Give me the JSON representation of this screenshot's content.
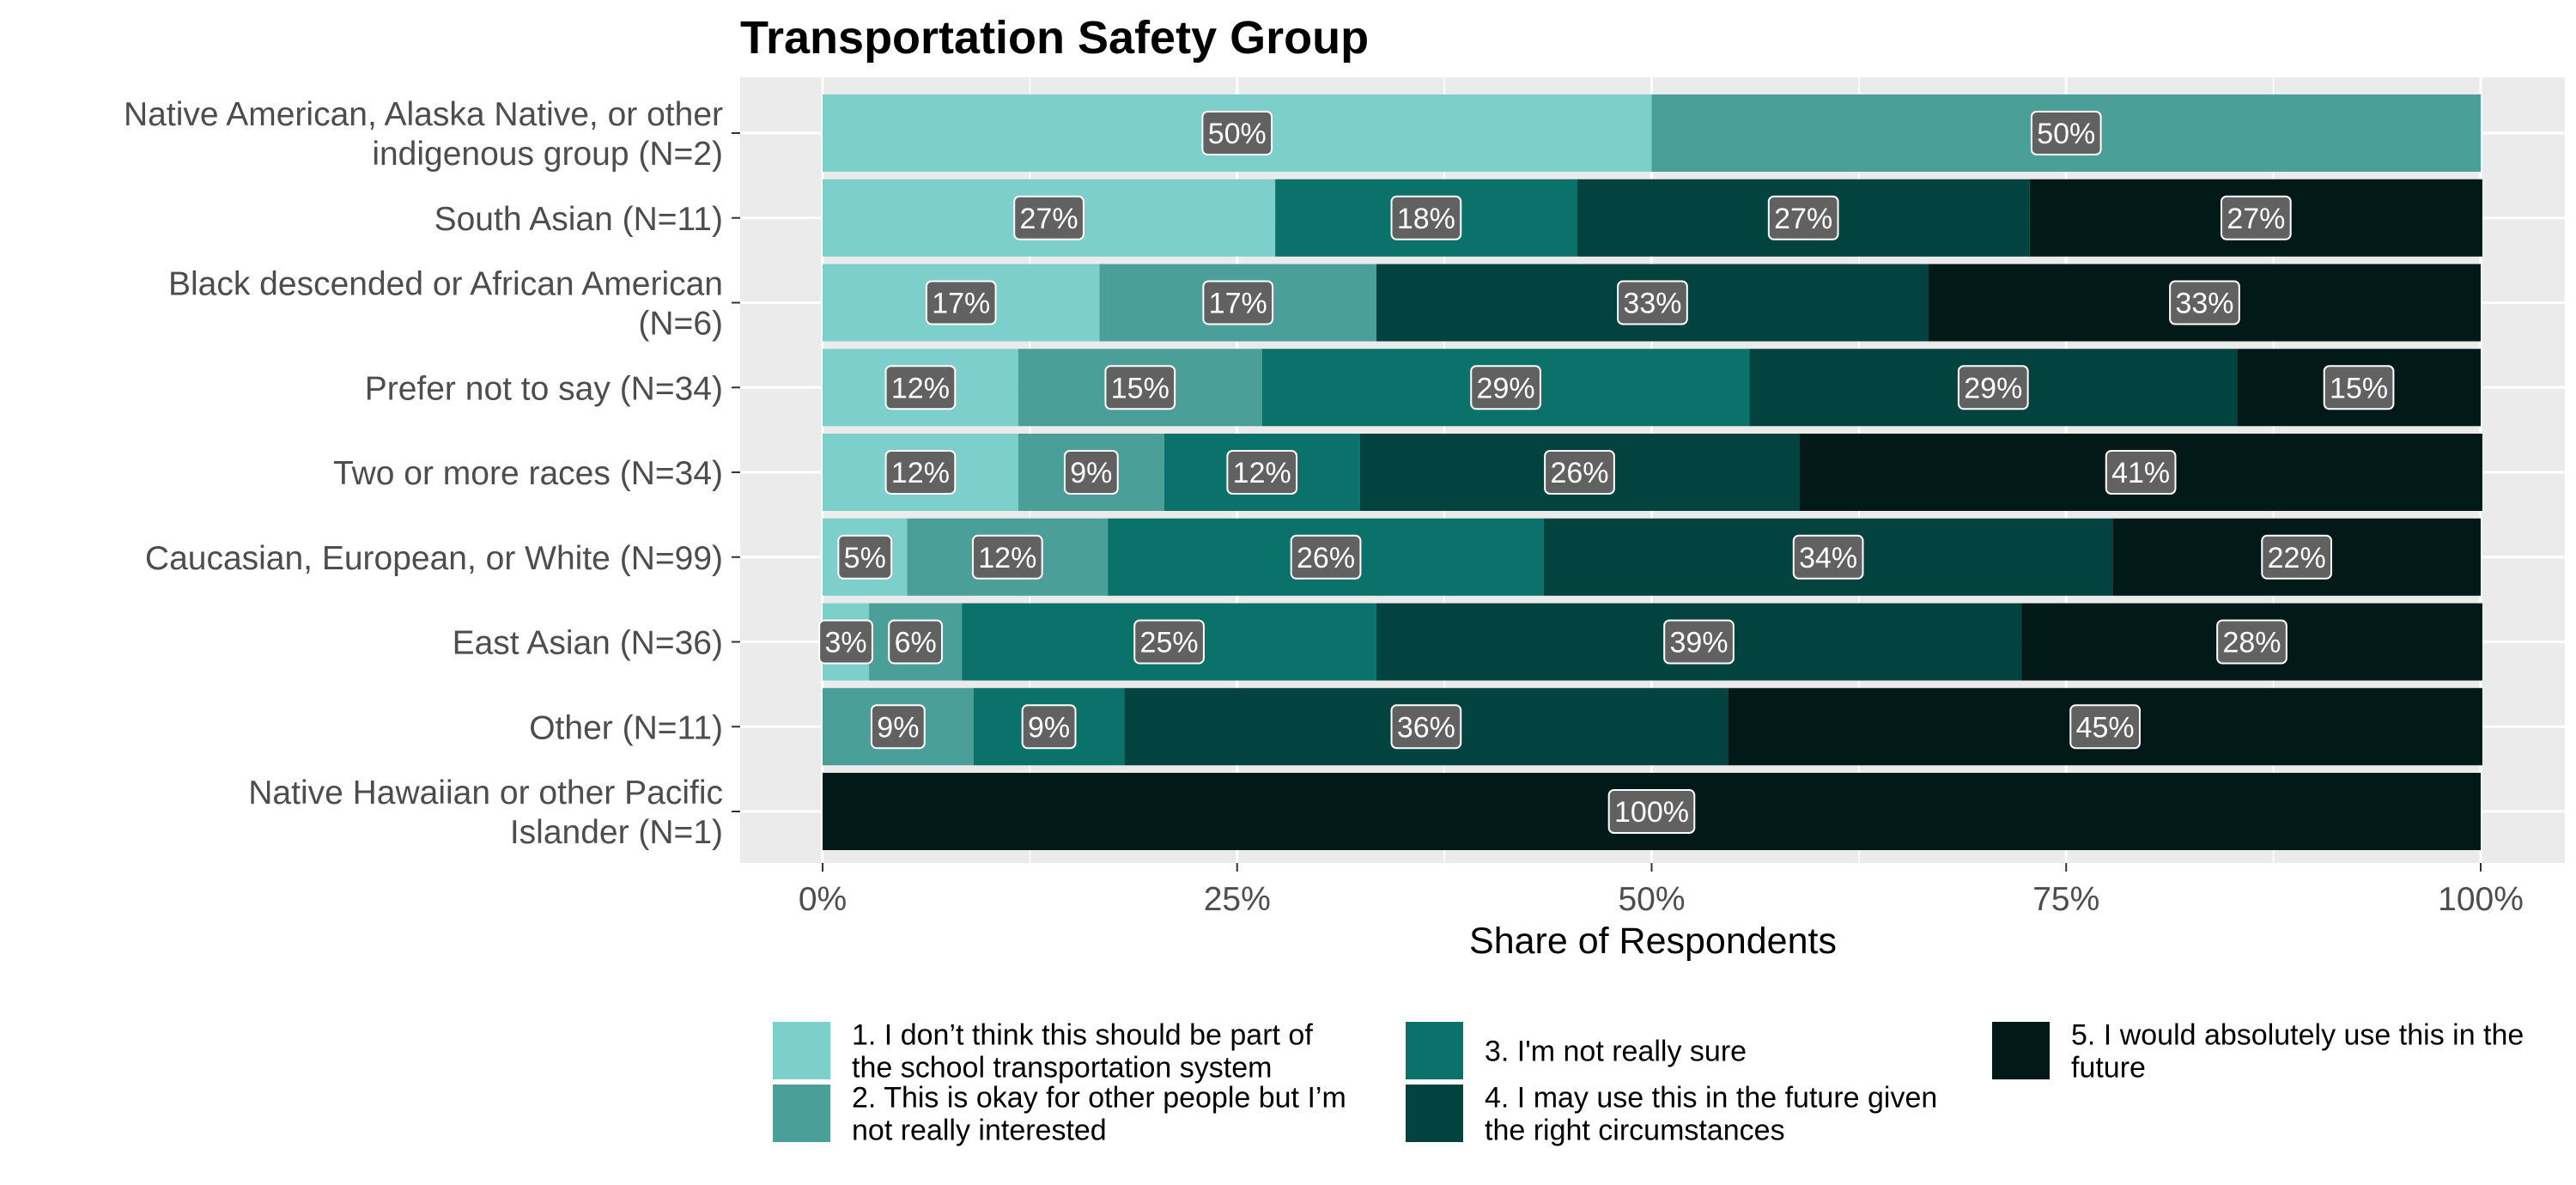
{
  "chart_data": {
    "type": "bar",
    "orientation": "horizontal",
    "stacked": "percent",
    "title": "Transportation Safety Group",
    "xlabel": "Share of Respondents",
    "ylabel": "",
    "xlim": [
      0,
      100
    ],
    "x_ticks": [
      "0%",
      "25%",
      "50%",
      "75%",
      "100%"
    ],
    "grid": true,
    "legend_position": "bottom",
    "categories": [
      [
        "Native American, Alaska Native, or other",
        "indigenous group (N=2)"
      ],
      [
        "South Asian (N=11)"
      ],
      [
        "Black descended or African American",
        "(N=6)"
      ],
      [
        "Prefer not to say (N=34)"
      ],
      [
        "Two or more races (N=34)"
      ],
      [
        "Caucasian, European, or White (N=99)"
      ],
      [
        "East Asian (N=36)"
      ],
      [
        "Other (N=11)"
      ],
      [
        "Native Hawaiian or other Pacific",
        "Islander (N=1)"
      ]
    ],
    "series": [
      {
        "name": [
          "1. I don’t think this should be part of",
          "the school transportation system"
        ],
        "color": "#7ccfcb",
        "values": [
          50,
          27.3,
          16.7,
          11.8,
          11.8,
          5.1,
          2.8,
          0,
          0
        ],
        "labels": [
          "50%",
          "27%",
          "17%",
          "12%",
          "12%",
          "5%",
          "3%",
          "",
          ""
        ]
      },
      {
        "name": [
          "2. This is okay for other people but I’m",
          "not really interested"
        ],
        "color": "#4a9f99",
        "values": [
          50,
          0,
          16.7,
          14.7,
          8.8,
          12.1,
          5.6,
          9.1,
          0
        ],
        "labels": [
          "50%",
          "",
          "17%",
          "15%",
          "9%",
          "12%",
          "6%",
          "9%",
          ""
        ]
      },
      {
        "name": [
          "3. I'm not really sure"
        ],
        "color": "#0b716b",
        "values": [
          0,
          18.2,
          0,
          29.4,
          11.8,
          26.3,
          25,
          9.1,
          0
        ],
        "labels": [
          "",
          "18%",
          "",
          "29%",
          "12%",
          "26%",
          "25%",
          "9%",
          ""
        ]
      },
      {
        "name": [
          "4. I may use this in the future given",
          "the right circumstances"
        ],
        "color": "#024340",
        "values": [
          0,
          27.3,
          33.3,
          29.4,
          26.5,
          34.3,
          38.9,
          36.4,
          0
        ],
        "labels": [
          "",
          "27%",
          "33%",
          "29%",
          "26%",
          "34%",
          "39%",
          "36%",
          ""
        ]
      },
      {
        "name": [
          "5. I would absolutely use this in the",
          "future"
        ],
        "color": "#021a17",
        "values": [
          0,
          27.3,
          33.3,
          14.7,
          41.2,
          22.2,
          27.8,
          45.5,
          100
        ],
        "labels": [
          "",
          "27%",
          "33%",
          "15%",
          "41%",
          "22%",
          "28%",
          "45%",
          "100%"
        ]
      }
    ]
  }
}
